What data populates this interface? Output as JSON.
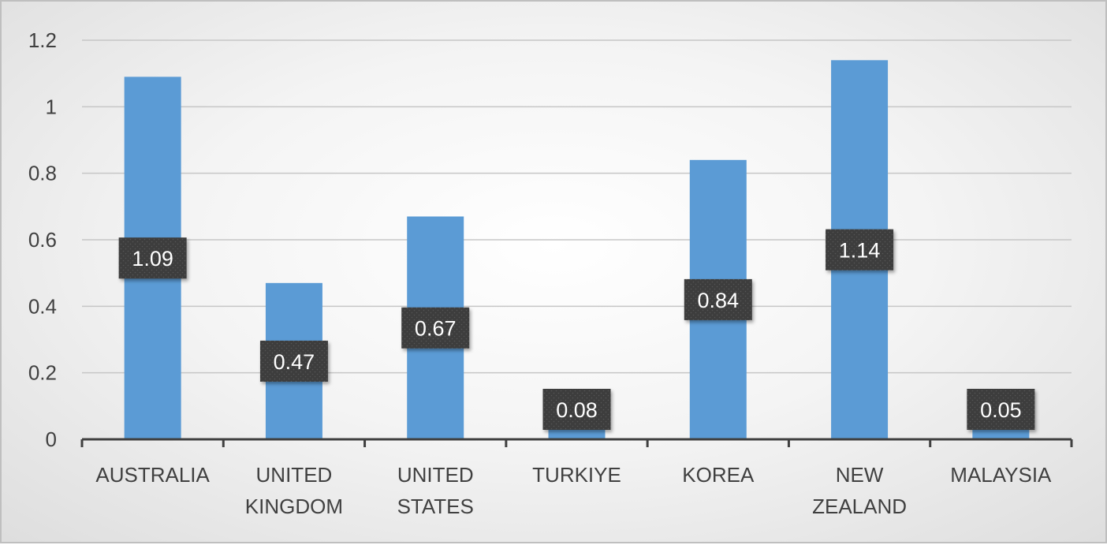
{
  "chart_data": {
    "type": "bar",
    "title": "",
    "xlabel": "",
    "ylabel": "",
    "categories": [
      [
        "AUSTRALIA"
      ],
      [
        "UNITED",
        "KINGDOM"
      ],
      [
        "UNITED",
        "STATES"
      ],
      [
        "TURKIYE"
      ],
      [
        "KOREA"
      ],
      [
        "NEW",
        "ZEALAND"
      ],
      [
        "MALAYSIA"
      ]
    ],
    "values": [
      1.09,
      0.47,
      0.67,
      0.08,
      0.84,
      1.14,
      0.05
    ],
    "data_labels": [
      "1.09",
      "0.47",
      "0.67",
      "0.08",
      "0.84",
      "1.14",
      "0.05"
    ],
    "ylim": [
      0,
      1.2
    ],
    "yticks": [
      0,
      0.2,
      0.4,
      0.6,
      0.8,
      1,
      1.2
    ],
    "ytick_labels": [
      "0",
      "0.2",
      "0.4",
      "0.6",
      "0.8",
      "1",
      "1.2"
    ],
    "y_display_max": 1.14,
    "grid": true,
    "legend": "none",
    "colors": {
      "bar": "#5b9bd5",
      "label_box": "#404040",
      "label_text": "#ffffff",
      "gridline": "#c6c6c6",
      "axis": "#404040",
      "text": "#404040"
    }
  }
}
